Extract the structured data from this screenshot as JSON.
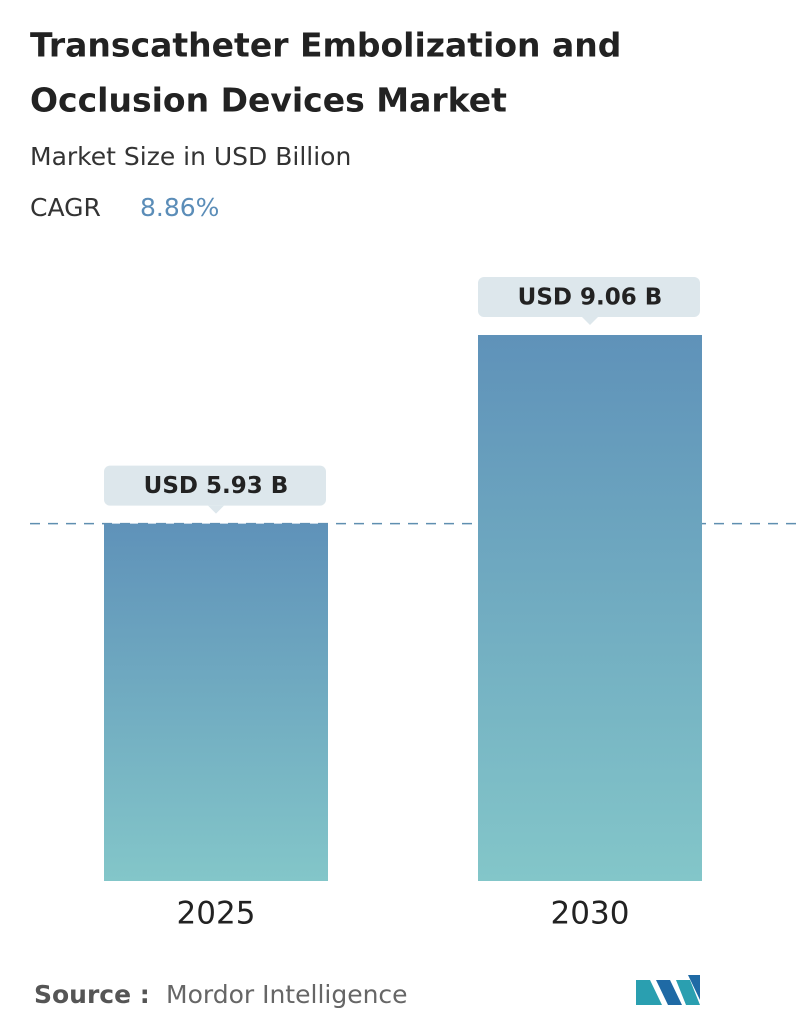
{
  "chart_data": {
    "type": "bar",
    "title": [
      "Transcatheter Embolization and",
      "Occlusion Devices Market"
    ],
    "subtitle": "Market Size in USD Billion",
    "cagr_label": "CAGR",
    "cagr": "8.86%",
    "categories": [
      "2025",
      "2030"
    ],
    "values": [
      5.93,
      9.06
    ],
    "value_labels": [
      "USD 5.93 B",
      "USD 9.06 B"
    ],
    "color": [
      "#5f92b9",
      "#83c6c9"
    ],
    "source_label": "Source :",
    "source": "Mordor Intelligence"
  }
}
